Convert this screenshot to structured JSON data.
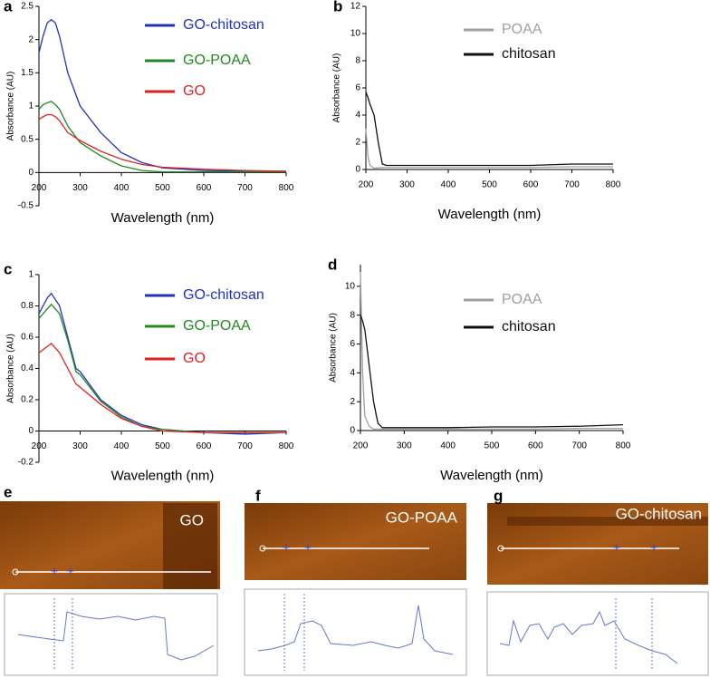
{
  "chart_data": [
    {
      "type": "line",
      "label": "a",
      "x_label": "Wavelength (nm)",
      "y_label": "Absorbance (AU)",
      "x": [
        200,
        210,
        220,
        230,
        240,
        250,
        270,
        300,
        350,
        400,
        450,
        500,
        600,
        700,
        800
      ],
      "xlim": [
        200,
        800
      ],
      "xticks": [
        200,
        300,
        400,
        500,
        600,
        700,
        800
      ],
      "ylim": [
        -0.5,
        2.5
      ],
      "yticks": [
        -0.5,
        0,
        0.5,
        1,
        1.5,
        2,
        2.5
      ],
      "series": [
        {
          "name": "GO-chitosan",
          "color": "#2233bb",
          "values": [
            1.8,
            2.05,
            2.25,
            2.3,
            2.25,
            2.05,
            1.5,
            1.0,
            0.6,
            0.3,
            0.15,
            0.07,
            0.03,
            0.02,
            0.02
          ]
        },
        {
          "name": "GO-POAA",
          "color": "#228822",
          "values": [
            0.95,
            1.02,
            1.05,
            1.07,
            1.02,
            0.95,
            0.7,
            0.45,
            0.25,
            0.1,
            0.03,
            0.01,
            0.01,
            0.01,
            0.01
          ]
        },
        {
          "name": "GO",
          "color": "#dd2222",
          "values": [
            0.8,
            0.84,
            0.87,
            0.87,
            0.84,
            0.78,
            0.6,
            0.48,
            0.32,
            0.2,
            0.12,
            0.08,
            0.05,
            0.03,
            0.02
          ]
        }
      ]
    },
    {
      "type": "line",
      "label": "b",
      "x_label": "Wavelength (nm)",
      "y_label": "Absorbance (AU)",
      "x": [
        200,
        205,
        210,
        220,
        230,
        240,
        250,
        300,
        400,
        500,
        600,
        700,
        800
      ],
      "xlim": [
        200,
        800
      ],
      "xticks": [
        200,
        300,
        400,
        500,
        600,
        700,
        800
      ],
      "ylim": [
        0,
        12
      ],
      "yticks": [
        0,
        2,
        4,
        6,
        8,
        10,
        12
      ],
      "series": [
        {
          "name": "POAA",
          "color": "#a0a0a0",
          "values": [
            3,
            1,
            0.3,
            0.1,
            0.12,
            0.15,
            0.15,
            0.15,
            0.15,
            0.15,
            0.15,
            0.2,
            0.2
          ]
        },
        {
          "name": "chitosan",
          "color": "#111111",
          "values": [
            5.7,
            5.3,
            4.8,
            4.0,
            2.0,
            0.4,
            0.3,
            0.3,
            0.3,
            0.3,
            0.3,
            0.4,
            0.4
          ]
        }
      ]
    },
    {
      "type": "line",
      "label": "c",
      "x_label": "Wavelength (nm)",
      "y_label": "Absorbance (AU)",
      "x": [
        200,
        220,
        230,
        250,
        270,
        290,
        300,
        350,
        400,
        450,
        500,
        600,
        700,
        800
      ],
      "xlim": [
        200,
        800
      ],
      "xticks": [
        200,
        300,
        400,
        500,
        600,
        700,
        800
      ],
      "ylim": [
        -0.2,
        1
      ],
      "yticks": [
        -0.2,
        0,
        0.2,
        0.4,
        0.6,
        0.8,
        1
      ],
      "series": [
        {
          "name": "GO-chitosan",
          "color": "#2233bb",
          "values": [
            0.75,
            0.85,
            0.88,
            0.8,
            0.6,
            0.4,
            0.38,
            0.2,
            0.1,
            0.04,
            0.01,
            -0.01,
            -0.02,
            -0.01
          ]
        },
        {
          "name": "GO-POAA",
          "color": "#228822",
          "values": [
            0.72,
            0.78,
            0.81,
            0.75,
            0.58,
            0.38,
            0.36,
            0.19,
            0.09,
            0.03,
            0.01,
            -0.01,
            -0.01,
            -0.01
          ]
        },
        {
          "name": "GO",
          "color": "#dd2222",
          "values": [
            0.5,
            0.54,
            0.56,
            0.5,
            0.4,
            0.3,
            0.28,
            0.17,
            0.08,
            0.03,
            0.0,
            -0.01,
            -0.01,
            -0.01
          ]
        }
      ]
    },
    {
      "type": "line",
      "label": "d",
      "x_label": "Wavelength (nm)",
      "y_label": "Absorbance (AU)",
      "x": [
        200,
        205,
        210,
        220,
        230,
        240,
        250,
        300,
        400,
        500,
        600,
        700,
        800
      ],
      "xlim": [
        200,
        800
      ],
      "xticks": [
        200,
        300,
        400,
        500,
        600,
        700,
        800
      ],
      "ylim": [
        0,
        11.5
      ],
      "yticks": [
        0,
        2,
        4,
        6,
        8,
        10
      ],
      "series": [
        {
          "name": "POAA",
          "color": "#a0a0a0",
          "values": [
            11,
            4,
            1,
            0.3,
            0.1,
            0.1,
            0.1,
            0.1,
            0.1,
            0.1,
            0.1,
            0.15,
            0.15
          ]
        },
        {
          "name": "chitosan",
          "color": "#111111",
          "values": [
            8,
            7.6,
            7,
            4.5,
            2,
            0.5,
            0.2,
            0.2,
            0.2,
            0.25,
            0.25,
            0.3,
            0.4
          ]
        }
      ]
    }
  ],
  "afm_images": [
    {
      "panel": "e",
      "label": "GO"
    },
    {
      "panel": "f",
      "label": "GO-POAA"
    },
    {
      "panel": "g",
      "label": "GO-chitosan"
    }
  ]
}
